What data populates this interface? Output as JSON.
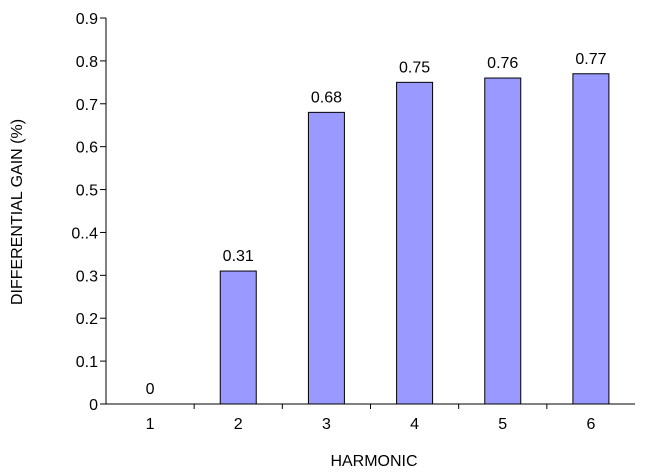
{
  "chart_data": {
    "type": "bar",
    "title": "",
    "xlabel": "HARMONIC",
    "ylabel": "DIFFERENTIAL GAIN (%)",
    "categories": [
      "1",
      "2",
      "3",
      "4",
      "5",
      "6"
    ],
    "values": [
      0,
      0.31,
      0.68,
      0.75,
      0.76,
      0.77
    ],
    "data_labels": [
      "0",
      "0.31",
      "0.68",
      "0.75",
      "0.76",
      "0.77"
    ],
    "y_ticks": [
      {
        "value": 0,
        "label": "0"
      },
      {
        "value": 0.1,
        "label": "0.1"
      },
      {
        "value": 0.2,
        "label": "0.2"
      },
      {
        "value": 0.3,
        "label": "0.3"
      },
      {
        "value": 0.4,
        "label": "0..4"
      },
      {
        "value": 0.5,
        "label": "0.5"
      },
      {
        "value": 0.6,
        "label": "0.6"
      },
      {
        "value": 0.7,
        "label": "0.7"
      },
      {
        "value": 0.8,
        "label": "0.8"
      },
      {
        "value": 0.9,
        "label": "0.9"
      }
    ],
    "ylim": [
      0,
      0.9
    ],
    "grid": false,
    "legend": "none",
    "bar_color": "#9999ff",
    "bar_edge_color": "#000000"
  }
}
